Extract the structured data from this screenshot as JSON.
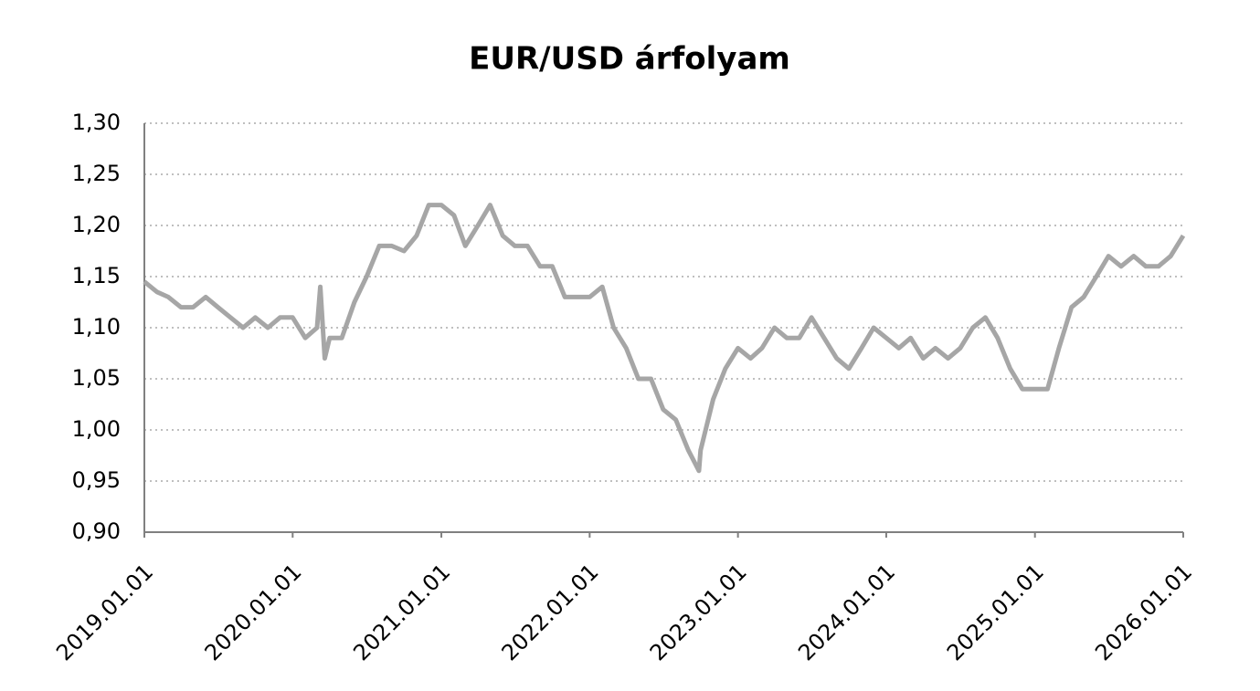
{
  "chart_data": {
    "type": "line",
    "title": "EUR/USD árfolyam",
    "x": [
      "2019-01-01",
      "2019-02-01",
      "2019-03-01",
      "2019-04-01",
      "2019-05-01",
      "2019-06-01",
      "2019-07-01",
      "2019-08-01",
      "2019-09-01",
      "2019-10-01",
      "2019-11-01",
      "2019-12-01",
      "2020-01-01",
      "2020-02-01",
      "2020-03-01",
      "2020-03-09",
      "2020-03-20",
      "2020-04-01",
      "2020-05-01",
      "2020-06-01",
      "2020-07-01",
      "2020-08-01",
      "2020-09-01",
      "2020-10-01",
      "2020-11-01",
      "2020-12-01",
      "2021-01-01",
      "2021-02-01",
      "2021-03-01",
      "2021-04-01",
      "2021-05-01",
      "2021-06-01",
      "2021-07-01",
      "2021-08-01",
      "2021-09-01",
      "2021-10-01",
      "2021-11-01",
      "2021-12-01",
      "2022-01-01",
      "2022-02-01",
      "2022-03-01",
      "2022-04-01",
      "2022-05-01",
      "2022-06-01",
      "2022-07-01",
      "2022-08-01",
      "2022-09-01",
      "2022-09-27",
      "2022-10-01",
      "2022-11-01",
      "2022-12-01",
      "2023-01-01",
      "2023-02-01",
      "2023-03-01",
      "2023-04-01",
      "2023-05-01",
      "2023-06-01",
      "2023-07-01",
      "2023-08-01",
      "2023-09-01",
      "2023-10-01",
      "2023-11-01",
      "2023-12-01",
      "2024-01-01",
      "2024-02-01",
      "2024-03-01",
      "2024-04-01",
      "2024-05-01",
      "2024-06-01",
      "2024-07-01",
      "2024-08-01",
      "2024-09-01",
      "2024-10-01",
      "2024-11-01",
      "2024-12-01",
      "2025-01-01",
      "2025-02-01",
      "2025-03-01",
      "2025-04-01",
      "2025-05-01",
      "2025-06-01",
      "2025-07-01",
      "2025-08-01",
      "2025-09-01",
      "2025-10-01",
      "2025-11-01",
      "2025-12-01",
      "2026-01-01"
    ],
    "series": [
      {
        "name": "EUR/USD",
        "color": "#a6a6a6",
        "values": [
          1.145,
          1.135,
          1.13,
          1.12,
          1.12,
          1.13,
          1.12,
          1.11,
          1.1,
          1.11,
          1.1,
          1.11,
          1.11,
          1.09,
          1.1,
          1.14,
          1.07,
          1.09,
          1.09,
          1.125,
          1.15,
          1.18,
          1.18,
          1.175,
          1.19,
          1.22,
          1.22,
          1.21,
          1.18,
          1.2,
          1.22,
          1.19,
          1.18,
          1.18,
          1.16,
          1.16,
          1.13,
          1.13,
          1.13,
          1.14,
          1.1,
          1.08,
          1.05,
          1.05,
          1.02,
          1.01,
          0.98,
          0.96,
          0.98,
          1.03,
          1.06,
          1.08,
          1.07,
          1.08,
          1.1,
          1.09,
          1.09,
          1.11,
          1.09,
          1.07,
          1.06,
          1.08,
          1.1,
          1.09,
          1.08,
          1.09,
          1.07,
          1.08,
          1.07,
          1.08,
          1.1,
          1.11,
          1.09,
          1.06,
          1.04,
          1.04,
          1.04,
          1.08,
          1.12,
          1.13,
          1.15,
          1.17,
          1.16,
          1.17,
          1.16,
          1.16,
          1.17,
          1.19
        ]
      }
    ],
    "xlim": [
      "2019-01-01",
      "2026-01-01"
    ],
    "xticks": [
      {
        "value": "2019-01-01",
        "label": "2019.01.01"
      },
      {
        "value": "2020-01-01",
        "label": "2020.01.01"
      },
      {
        "value": "2021-01-01",
        "label": "2021.01.01"
      },
      {
        "value": "2022-01-01",
        "label": "2022.01.01"
      },
      {
        "value": "2023-01-01",
        "label": "2023.01.01"
      },
      {
        "value": "2024-01-01",
        "label": "2024.01.01"
      },
      {
        "value": "2025-01-01",
        "label": "2025.01.01"
      },
      {
        "value": "2026-01-01",
        "label": "2026.01.01"
      }
    ],
    "ylim": [
      0.9,
      1.3
    ],
    "yticks": [
      {
        "value": 0.9,
        "label": "0,90"
      },
      {
        "value": 0.95,
        "label": "0,95"
      },
      {
        "value": 1.0,
        "label": "1,00"
      },
      {
        "value": 1.05,
        "label": "1,05"
      },
      {
        "value": 1.1,
        "label": "1,10"
      },
      {
        "value": 1.15,
        "label": "1,15"
      },
      {
        "value": 1.2,
        "label": "1,20"
      },
      {
        "value": 1.25,
        "label": "1,25"
      },
      {
        "value": 1.3,
        "label": "1,30"
      }
    ],
    "grid": true
  }
}
